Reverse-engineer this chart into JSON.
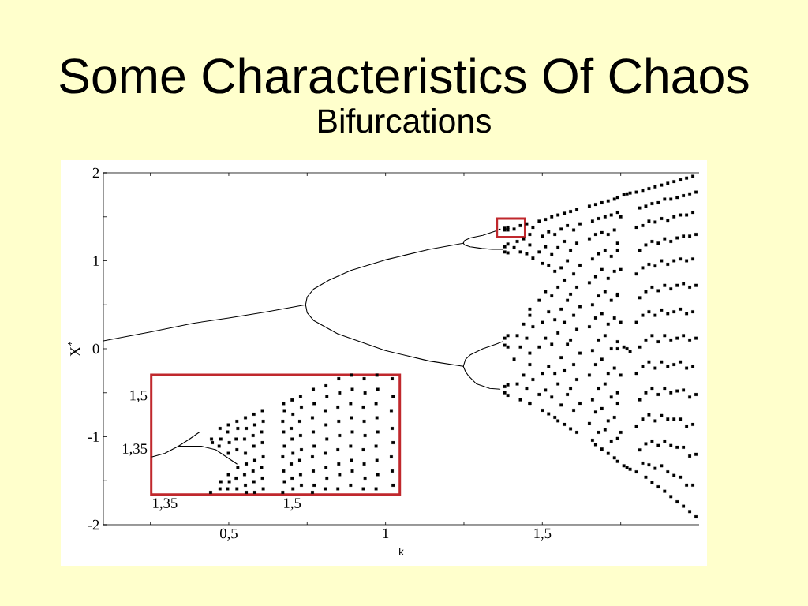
{
  "chart_data": [
    {
      "type": "scatter",
      "title": "Some Characteristics Of Chaos",
      "subtitle": "Bifurcations",
      "xlabel": "k",
      "ylabel": "X$^{*}$",
      "xlim": [
        0.1,
        2
      ],
      "ylim": [
        -2,
        2
      ],
      "xticks": [
        {
          "value": 0.25,
          "label": null
        },
        {
          "value": 0.5,
          "label": "0,5"
        },
        {
          "value": 0.75,
          "label": null
        },
        1,
        {
          "value": 1.25,
          "label": null
        },
        {
          "value": 1.5,
          "label": "1,5"
        },
        {
          "value": 1.75,
          "label": null
        }
      ],
      "yticks": [
        -2,
        {
          "value": -1.5,
          "label": null
        },
        -1,
        {
          "value": -0.5,
          "label": null
        },
        0,
        {
          "value": 0.5,
          "label": null
        },
        1,
        {
          "value": 1.5,
          "label": null
        },
        2
      ],
      "marker": "square",
      "series": [
        {
          "type": "line",
          "marker": "none",
          "color": "#000000",
          "x": [
            0.1,
            0.25,
            0.386,
            0.5,
            0.62,
            0.745
          ],
          "values": [
            0.09,
            0.19,
            0.29,
            0.35,
            0.42,
            0.5
          ]
        },
        {
          "type": "line",
          "marker": "none",
          "color": "#000000",
          "x": [
            1.248,
            1.14,
            0.999,
            0.889,
            0.82,
            0.771,
            0.75,
            0.745,
            0.75,
            0.771,
            0.847,
            0.999,
            1.14,
            1.248
          ],
          "values": [
            1.2,
            1.13,
            1.01,
            0.89,
            0.78,
            0.68,
            0.59,
            0.5,
            0.41,
            0.32,
            0.17,
            -0.02,
            -0.14,
            -0.2
          ]
        },
        {
          "type": "line",
          "marker": "none",
          "color": "#000000",
          "x": [
            1.366,
            1.353,
            1.31,
            1.27,
            1.252,
            1.248,
            1.252,
            1.27,
            1.307,
            1.34,
            1.373
          ],
          "values": [
            1.36,
            1.34,
            1.29,
            1.26,
            1.23,
            1.2,
            1.18,
            1.16,
            1.14,
            1.13,
            1.13
          ]
        },
        {
          "type": "line",
          "marker": "none",
          "color": "#000000",
          "x": [
            1.373,
            1.35,
            1.31,
            1.27,
            1.255,
            1.248,
            1.255,
            1.265,
            1.29,
            1.332,
            1.365
          ],
          "values": [
            0.08,
            0.05,
            0.0,
            -0.07,
            -0.12,
            -0.2,
            -0.26,
            -0.31,
            -0.4,
            -0.45,
            -0.46
          ]
        },
        {
          "color": "#000000",
          "x": [
            1.38,
            1.39,
            1.38,
            1.39,
            1.38,
            1.39,
            1.38,
            1.39,
            1.38,
            1.39,
            1.38,
            1.39,
            1.38,
            1.39,
            1.38,
            1.39,
            1.41,
            1.42,
            1.41,
            1.42,
            1.41,
            1.42,
            1.43,
            1.44,
            1.43,
            1.44,
            1.43,
            1.44,
            1.43,
            1.45,
            1.46,
            1.45,
            1.46,
            1.45,
            1.46,
            1.45,
            1.46,
            1.47,
            1.46,
            1.47,
            1.46,
            1.47,
            1.46,
            1.47,
            1.46,
            1.49,
            1.5,
            1.49,
            1.5,
            1.49,
            1.5,
            1.49,
            1.5,
            1.49,
            1.5,
            1.51,
            1.52,
            1.51,
            1.52,
            1.51,
            1.52,
            1.51,
            1.52,
            1.51,
            1.52,
            1.53,
            1.54,
            1.53,
            1.54,
            1.53,
            1.54,
            1.53,
            1.54,
            1.53,
            1.54,
            1.55,
            1.56,
            1.55,
            1.56,
            1.55,
            1.56,
            1.55,
            1.56,
            1.55,
            1.56,
            1.55,
            1.57,
            1.58,
            1.57,
            1.58,
            1.57,
            1.58,
            1.57,
            1.58,
            1.57,
            1.58,
            1.57,
            1.59,
            1.6,
            1.59,
            1.6,
            1.59,
            1.6,
            1.59,
            1.6,
            1.59,
            1.6,
            1.59,
            1.61,
            1.62,
            1.61,
            1.62,
            1.61,
            1.62,
            1.61,
            1.62,
            1.61,
            1.62,
            1.61
          ],
          "values": [
            1.37,
            1.38,
            1.35,
            1.35,
            1.16,
            1.19,
            1.1,
            1.09,
            0.12,
            0.15,
            0.04,
            0.02,
            -0.43,
            -0.41,
            -0.5,
            -0.53,
            1.36,
            1.22,
            1.15,
            0.15,
            -0.12,
            -0.4,
            1.4,
            1.25,
            1.1,
            0.28,
            0.02,
            -0.3,
            -0.58,
            1.42,
            1.3,
            1.08,
            0.38,
            0.12,
            -0.18,
            -0.45,
            -0.62,
            1.38,
            1.18,
            1.03,
            0.45,
            0.25,
            -0.05,
            -0.35,
            -0.62,
            1.45,
            1.28,
            1.1,
            0.97,
            0.55,
            0.3,
            0.02,
            -0.28,
            -0.52,
            -0.7,
            1.47,
            1.33,
            1.16,
            0.95,
            0.65,
            0.42,
            0.12,
            -0.2,
            -0.47,
            -0.74,
            1.5,
            1.3,
            1.07,
            0.88,
            0.6,
            0.33,
            0.05,
            -0.28,
            -0.55,
            -0.78,
            1.52,
            1.36,
            1.15,
            0.92,
            0.7,
            0.45,
            0.18,
            -0.1,
            -0.4,
            -0.64,
            -0.82,
            1.54,
            1.4,
            1.22,
            1.0,
            0.78,
            0.55,
            0.3,
            0.05,
            -0.25,
            -0.52,
            -0.86,
            1.56,
            1.35,
            1.12,
            0.85,
            0.62,
            0.38,
            0.1,
            -0.18,
            -0.45,
            -0.7,
            -0.91,
            1.58,
            1.42,
            1.2,
            0.95,
            0.7,
            0.48,
            0.22,
            -0.05,
            -0.35,
            -0.62,
            -0.95
          ]
        },
        {
          "color": "#000000",
          "x": [
            1.65,
            1.66,
            1.65,
            1.66,
            1.65,
            1.66,
            1.65,
            1.66,
            1.65,
            1.66,
            1.65,
            1.66,
            1.67,
            1.68,
            1.67,
            1.68,
            1.67,
            1.68,
            1.67,
            1.68,
            1.67,
            1.68,
            1.67,
            1.68,
            1.67,
            1.69,
            1.7,
            1.69,
            1.7,
            1.69,
            1.7,
            1.69,
            1.7,
            1.69,
            1.7,
            1.69,
            1.7,
            1.69,
            1.71,
            1.72,
            1.71,
            1.72,
            1.71,
            1.72,
            1.71,
            1.72,
            1.71,
            1.72,
            1.71,
            1.72,
            1.71,
            1.73,
            1.74,
            1.73,
            1.74,
            1.73,
            1.74,
            1.73,
            1.74,
            1.73,
            1.74,
            1.73,
            1.74,
            1.73,
            1.74,
            1.75,
            1.74,
            1.75,
            1.74,
            1.75,
            1.74,
            1.75,
            1.74,
            1.75,
            1.74,
            1.76,
            1.77,
            1.78,
            1.76,
            1.77,
            1.78,
            1.76,
            1.77,
            1.78
          ],
          "values": [
            1.62,
            1.45,
            1.25,
            1.02,
            0.75,
            0.5,
            0.25,
            -0.02,
            -0.3,
            -0.58,
            -0.85,
            -1.04,
            1.64,
            1.48,
            1.3,
            1.08,
            0.82,
            0.6,
            0.35,
            0.1,
            -0.18,
            -0.45,
            -0.72,
            -0.95,
            -1.09,
            1.66,
            1.5,
            1.32,
            1.12,
            0.9,
            0.65,
            0.4,
            0.15,
            -0.12,
            -0.4,
            -0.68,
            -0.92,
            -1.14,
            1.68,
            1.52,
            1.3,
            1.05,
            0.8,
            0.55,
            0.28,
            0.0,
            -0.28,
            -0.55,
            -0.82,
            -1.05,
            -1.19,
            1.7,
            1.55,
            1.35,
            1.12,
            0.88,
            0.62,
            0.35,
            0.08,
            -0.22,
            -0.5,
            -0.78,
            -1.02,
            -1.24,
            1.72,
            1.5,
            1.2,
            0.9,
            0.6,
            0.3,
            0.0,
            -0.3,
            -0.62,
            -0.95,
            -1.28,
            1.75,
            1.76,
            1.77,
            0.02,
            0.0,
            -0.03,
            -1.33,
            -1.35,
            -1.37
          ]
        },
        {
          "color": "#000000",
          "x": [
            1.8,
            1.81,
            1.8,
            1.81,
            1.8,
            1.81,
            1.8,
            1.81,
            1.8,
            1.81,
            1.8,
            1.81,
            1.8,
            1.82,
            1.83,
            1.82,
            1.83,
            1.82,
            1.83,
            1.82,
            1.83,
            1.82,
            1.83,
            1.82,
            1.83,
            1.82,
            1.83,
            1.84,
            1.85,
            1.84,
            1.85,
            1.84,
            1.85,
            1.84,
            1.85,
            1.84,
            1.85,
            1.84,
            1.85,
            1.84,
            1.85,
            1.86,
            1.87,
            1.86,
            1.87,
            1.86,
            1.87,
            1.86,
            1.87,
            1.86,
            1.87,
            1.86,
            1.87,
            1.86,
            1.87,
            1.88,
            1.89,
            1.88,
            1.89,
            1.88,
            1.89,
            1.88,
            1.89,
            1.88,
            1.89,
            1.88,
            1.89,
            1.88,
            1.89,
            1.9,
            1.91,
            1.9,
            1.91,
            1.9,
            1.91,
            1.9,
            1.91,
            1.9,
            1.91,
            1.9,
            1.91,
            1.9,
            1.91,
            1.92,
            1.93,
            1.92,
            1.93,
            1.92,
            1.93,
            1.92,
            1.93,
            1.92,
            1.93,
            1.92,
            1.93,
            1.92,
            1.93,
            1.94,
            1.95,
            1.94,
            1.95,
            1.94,
            1.95,
            1.94,
            1.95,
            1.94,
            1.95,
            1.94,
            1.95,
            1.94,
            1.95,
            1.96,
            1.97,
            1.96,
            1.97,
            1.96,
            1.97,
            1.96,
            1.97,
            1.96,
            1.97,
            1.96,
            1.97,
            1.96,
            1.97,
            1.98,
            1.99,
            1.98,
            1.99,
            1.98,
            1.99,
            1.98,
            1.99,
            1.98,
            1.99,
            1.98,
            1.99,
            1.98,
            1.99
          ],
          "values": [
            1.78,
            1.6,
            1.38,
            1.12,
            0.85,
            0.58,
            0.3,
            0.02,
            -0.28,
            -0.58,
            -0.88,
            -1.15,
            -1.4,
            1.8,
            1.62,
            1.4,
            1.18,
            0.92,
            0.65,
            0.38,
            0.1,
            -0.2,
            -0.5,
            -0.8,
            -1.08,
            -1.3,
            -1.46,
            1.82,
            1.65,
            1.45,
            1.22,
            0.96,
            0.7,
            0.42,
            0.15,
            -0.15,
            -0.45,
            -0.75,
            -1.05,
            -1.32,
            -1.52,
            1.84,
            1.66,
            1.44,
            1.2,
            0.94,
            0.66,
            0.38,
            0.08,
            -0.22,
            -0.52,
            -0.82,
            -1.1,
            -1.36,
            -1.57,
            1.86,
            1.7,
            1.48,
            1.25,
            1.0,
            0.72,
            0.44,
            0.15,
            -0.15,
            -0.45,
            -0.76,
            -1.05,
            -1.33,
            -1.62,
            1.88,
            1.7,
            1.46,
            1.22,
            0.96,
            0.68,
            0.4,
            0.1,
            -0.2,
            -0.5,
            -0.8,
            -1.1,
            -1.4,
            -1.68,
            1.9,
            1.72,
            1.5,
            1.26,
            1.0,
            0.72,
            0.42,
            0.12,
            -0.18,
            -0.48,
            -0.8,
            -1.12,
            -1.44,
            -1.74,
            1.92,
            1.74,
            1.52,
            1.28,
            1.02,
            0.74,
            0.45,
            0.15,
            -0.15,
            -0.47,
            -0.8,
            -1.12,
            -1.46,
            -1.79,
            1.94,
            1.76,
            1.52,
            1.28,
            1.0,
            0.7,
            0.4,
            0.1,
            -0.22,
            -0.55,
            -0.88,
            -1.22,
            -1.55,
            -1.85,
            1.96,
            1.78,
            1.55,
            1.3,
            1.02,
            0.72,
            0.42,
            0.12,
            -0.2,
            -0.52,
            -0.86,
            -1.2,
            -1.55,
            -1.91
          ]
        },
        {
          "type": "line",
          "marker": "none",
          "color": "#c0282d",
          "x": [
            1.4,
            1.445,
            1.445,
            1.355,
            1.355,
            1.395
          ],
          "values": [
            1.27,
            1.27,
            1.48,
            1.48,
            1.27,
            1.27
          ]
        }
      ]
    },
    {
      "type": "scatter",
      "xlim": [
        1.334,
        1.627
      ],
      "ylim": [
        1.224,
        1.561
      ],
      "xticks": [
        {
          "value": 1.35,
          "label": "1,35"
        },
        {
          "value": 1.5,
          "label": "1,5"
        }
      ],
      "yticks": [
        {
          "value": 1.35,
          "label": "1,35"
        },
        {
          "value": 1.5,
          "label": "1,5"
        }
      ],
      "marker": "square",
      "series": [
        {
          "type": "line",
          "marker": "none",
          "color": "#000000",
          "x": [
            1.335,
            1.35,
            1.366
          ],
          "values": [
            1.33,
            1.34,
            1.36
          ]
        },
        {
          "type": "line",
          "marker": "none",
          "color": "#000000",
          "x": [
            1.404,
            1.391,
            1.379,
            1.366,
            1.393,
            1.41,
            1.435
          ],
          "values": [
            1.4,
            1.4,
            1.38,
            1.36,
            1.36,
            1.35,
            1.31
          ]
        },
        {
          "color": "#000000",
          "x": [
            1.405,
            1.406,
            1.404,
            1.415,
            1.416,
            1.414,
            1.415,
            1.416,
            1.425,
            1.424,
            1.426,
            1.425,
            1.424,
            1.426,
            1.425,
            1.435,
            1.436,
            1.434,
            1.435,
            1.436,
            1.434,
            1.435,
            1.445,
            1.446,
            1.444,
            1.445,
            1.446,
            1.444,
            1.445,
            1.446,
            1.455,
            1.456,
            1.454,
            1.455,
            1.456,
            1.454,
            1.455,
            1.456,
            1.465,
            1.466,
            1.464,
            1.465,
            1.466,
            1.464,
            1.465,
            1.466,
            1.49,
            1.491,
            1.489,
            1.49,
            1.491,
            1.489,
            1.49,
            1.491,
            1.489,
            1.5,
            1.501,
            1.499,
            1.5,
            1.501,
            1.499,
            1.5,
            1.501,
            1.51,
            1.511,
            1.509,
            1.51,
            1.511,
            1.509,
            1.51,
            1.511,
            1.525,
            1.526,
            1.524,
            1.525,
            1.526,
            1.524,
            1.525,
            1.526,
            1.524,
            1.54,
            1.541,
            1.539,
            1.54,
            1.541,
            1.539,
            1.54,
            1.541,
            1.539,
            1.555,
            1.556,
            1.554,
            1.555,
            1.556,
            1.554,
            1.555,
            1.556,
            1.554,
            1.57,
            1.571,
            1.569,
            1.57,
            1.571,
            1.569,
            1.57,
            1.571,
            1.569,
            1.585,
            1.586,
            1.584,
            1.585,
            1.586,
            1.584,
            1.585,
            1.586,
            1.584,
            1.6,
            1.601,
            1.599,
            1.6,
            1.601,
            1.599,
            1.6,
            1.601,
            1.599,
            1.618,
            1.619,
            1.617,
            1.618,
            1.619,
            1.617,
            1.618,
            1.619
          ],
          "values": [
            1.38,
            1.37,
            1.23,
            1.41,
            1.38,
            1.36,
            1.24,
            1.26,
            1.42,
            1.4,
            1.37,
            1.34,
            1.24,
            1.26,
            1.28,
            1.43,
            1.41,
            1.38,
            1.35,
            1.3,
            1.27,
            1.24,
            1.44,
            1.41,
            1.38,
            1.34,
            1.31,
            1.28,
            1.25,
            1.23,
            1.45,
            1.42,
            1.39,
            1.36,
            1.32,
            1.29,
            1.26,
            1.23,
            1.46,
            1.43,
            1.4,
            1.37,
            1.33,
            1.3,
            1.27,
            1.24,
            1.48,
            1.46,
            1.43,
            1.4,
            1.36,
            1.33,
            1.29,
            1.26,
            1.23,
            1.49,
            1.45,
            1.41,
            1.38,
            1.34,
            1.31,
            1.27,
            1.24,
            1.5,
            1.47,
            1.43,
            1.39,
            1.35,
            1.32,
            1.28,
            1.25,
            1.52,
            1.48,
            1.44,
            1.4,
            1.36,
            1.33,
            1.29,
            1.25,
            1.23,
            1.53,
            1.5,
            1.46,
            1.42,
            1.38,
            1.34,
            1.3,
            1.27,
            1.24,
            1.55,
            1.51,
            1.47,
            1.43,
            1.39,
            1.35,
            1.31,
            1.28,
            1.24,
            1.56,
            1.52,
            1.48,
            1.44,
            1.4,
            1.36,
            1.32,
            1.29,
            1.25,
            1.55,
            1.51,
            1.47,
            1.43,
            1.39,
            1.35,
            1.31,
            1.27,
            1.24,
            1.56,
            1.52,
            1.48,
            1.44,
            1.4,
            1.36,
            1.32,
            1.28,
            1.24,
            1.55,
            1.5,
            1.46,
            1.41,
            1.37,
            1.33,
            1.29,
            1.25
          ]
        }
      ]
    }
  ]
}
